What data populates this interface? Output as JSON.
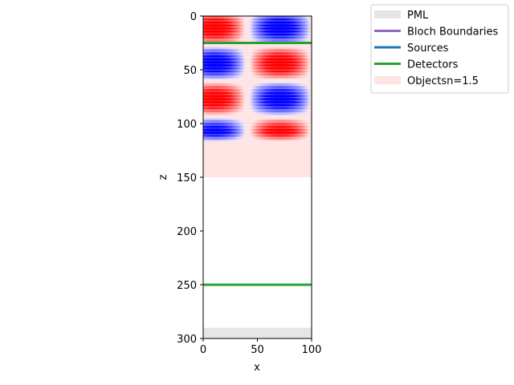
{
  "chart_data": {
    "type": "heatmap",
    "xlabel": "x",
    "ylabel": "z",
    "xlim": [
      0,
      100
    ],
    "ylim": [
      300,
      0
    ],
    "y_inverted": true,
    "x_ticks": [
      0,
      50,
      100
    ],
    "y_ticks": [
      0,
      50,
      100,
      150,
      200,
      250,
      300
    ],
    "grid": false,
    "legend_placement": "upper-right, outside axes",
    "legend": [
      {
        "label": "PML",
        "color": "#e6e6e6",
        "kind": "patch"
      },
      {
        "label": "Bloch Boundaries",
        "color": "#9467bd",
        "kind": "line"
      },
      {
        "label": "Sources",
        "color": "#1f77b4",
        "kind": "line"
      },
      {
        "label": "Detectors",
        "color": "#2ca02c",
        "kind": "line"
      },
      {
        "label": "Objectsn=1.5",
        "color": "#ffe4e4",
        "kind": "patch"
      }
    ],
    "regions": [
      {
        "name": "PML",
        "z_range": [
          290,
          300
        ],
        "color": "#e6e6e6"
      },
      {
        "name": "Objectsn=1.5",
        "z_range": [
          0,
          150
        ],
        "color": "#ffe4e4"
      }
    ],
    "detectors_z": [
      25,
      250
    ],
    "field": {
      "z_range": [
        0,
        118
      ],
      "colormap": "bwr",
      "positive_color": "#ff0000",
      "negative_color": "#0000ff"
    }
  }
}
